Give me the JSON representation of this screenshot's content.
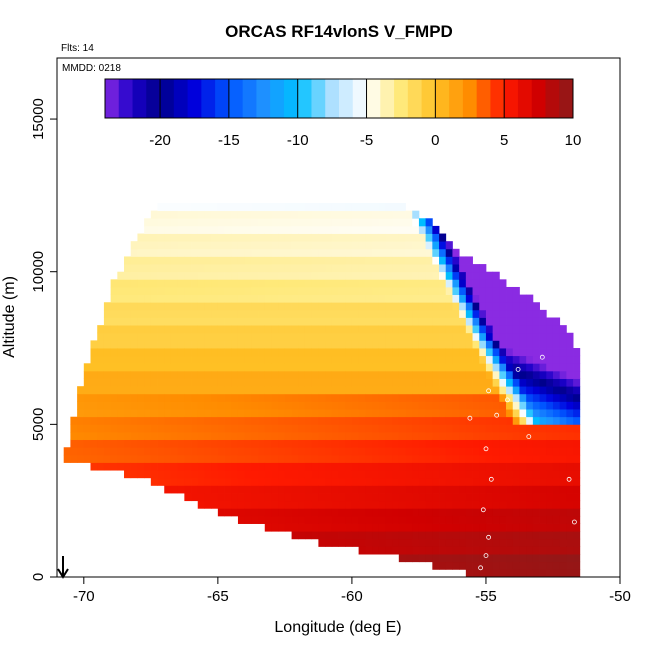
{
  "chart_data": {
    "type": "heatmap",
    "title": "ORCAS RF14vlonS V_FMPD",
    "annotations": {
      "flights": "Flts: 14",
      "date": "MMDD: 0218"
    },
    "xlabel": "Longitude (deg E)",
    "ylabel": "Altitude (m)",
    "xlim": [
      -71,
      -50
    ],
    "ylim": [
      0,
      17000
    ],
    "xticks": [
      -70,
      -65,
      -60,
      -55,
      -50
    ],
    "xtick_labels": [
      "-70",
      "-65",
      "-60",
      "-55",
      "-50"
    ],
    "yticks": [
      0,
      5000,
      10000,
      15000
    ],
    "ytick_labels": [
      "0",
      "5000",
      "10000",
      "15000"
    ],
    "colorbar": {
      "range": [
        -24,
        10
      ],
      "ticks": [
        -20,
        -15,
        -10,
        -5,
        0,
        5,
        10
      ],
      "tick_labels": [
        "-20",
        "-15",
        "-10",
        "-5",
        "0",
        "5",
        "10"
      ],
      "colors": [
        {
          "v": -24,
          "c": "#8a2be2"
        },
        {
          "v": -22,
          "c": "#1a00c8"
        },
        {
          "v": -20,
          "c": "#00008b"
        },
        {
          "v": -17.5,
          "c": "#0000dc"
        },
        {
          "v": -15,
          "c": "#0055ff"
        },
        {
          "v": -12.5,
          "c": "#1e90ff"
        },
        {
          "v": -10,
          "c": "#00bfff"
        },
        {
          "v": -7.5,
          "c": "#aee0ff"
        },
        {
          "v": -5,
          "c": "#ffffff"
        },
        {
          "v": -2.5,
          "c": "#ffe97a"
        },
        {
          "v": 0,
          "c": "#ffc125"
        },
        {
          "v": 2.5,
          "c": "#ff8c00"
        },
        {
          "v": 5,
          "c": "#ff1a00"
        },
        {
          "v": 7.5,
          "c": "#d00000"
        },
        {
          "v": 10,
          "c": "#8b1a1a"
        }
      ]
    },
    "field": {
      "cell_width_deg": 0.25,
      "cell_height_m": 250,
      "upper_boundary": [
        [
          -70.75,
          3800
        ],
        [
          -70.0,
          6500
        ],
        [
          -69.0,
          9300
        ],
        [
          -68.0,
          11000
        ],
        [
          -67.5,
          11800
        ],
        [
          -67.0,
          12200
        ],
        [
          -58.5,
          12200
        ],
        [
          -57.3,
          11700
        ],
        [
          -56.0,
          10500
        ],
        [
          -54.5,
          9700
        ],
        [
          -53.0,
          8800
        ],
        [
          -52.0,
          8000
        ],
        [
          -51.4,
          7600
        ]
      ],
      "lower_boundary": [
        [
          -70.75,
          3800
        ],
        [
          -68.0,
          3300
        ],
        [
          -66.0,
          2500
        ],
        [
          -64.0,
          1800
        ],
        [
          -62.0,
          1300
        ],
        [
          -60.0,
          900
        ],
        [
          -57.0,
          400
        ],
        [
          -55.5,
          100
        ],
        [
          -54.5,
          0
        ],
        [
          -51.5,
          0
        ]
      ],
      "right_boundary": [
        [
          7500,
          -51.4
        ],
        [
          6000,
          -51.6
        ],
        [
          4000,
          -51.8
        ],
        [
          2500,
          -51.8
        ],
        [
          0,
          -51.8
        ]
      ],
      "value_profile": [
        [
          0,
          8
        ],
        [
          2000,
          6
        ],
        [
          4000,
          3.5
        ],
        [
          6000,
          1.5
        ],
        [
          8000,
          -1
        ],
        [
          10000,
          -3
        ],
        [
          12500,
          -5
        ]
      ],
      "east_front": {
        "min_altitude": 5000,
        "longitude_at_base": -54.0,
        "lean_deg_per_km": -0.55,
        "width_deg": 1.0,
        "east_values": [
          -8,
          -24
        ],
        "east_values_altitude": [
          5000,
          8000
        ]
      }
    }
  }
}
